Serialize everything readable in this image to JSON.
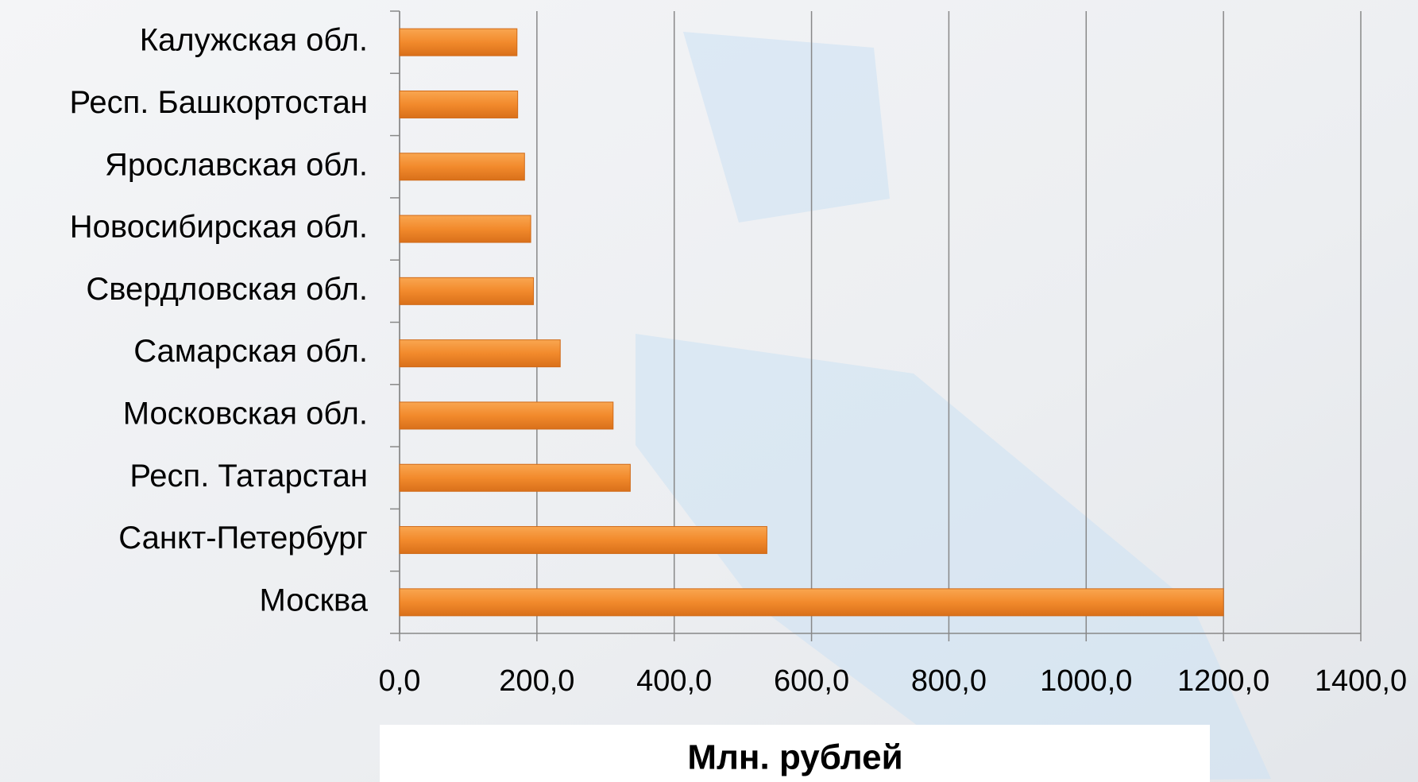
{
  "chart_data": {
    "type": "bar",
    "orientation": "horizontal",
    "x_label": "Млн. рублей",
    "categories": [
      "Калужская обл.",
      "Респ. Башкортостан",
      "Ярославская обл.",
      "Новосибирская обл.",
      "Свердловская обл.",
      "Самарская обл.",
      "Московская обл.",
      "Респ. Татарстан",
      "Санкт-Петербург",
      "Москва"
    ],
    "values": [
      171,
      172,
      182,
      191,
      195,
      234,
      311,
      336,
      535,
      1200
    ],
    "color": "#f28a2c",
    "xlim": [
      0,
      1400
    ],
    "xticks": [
      {
        "value": 0,
        "label": "0,0"
      },
      {
        "value": 200,
        "label": "200,0"
      },
      {
        "value": 400,
        "label": "400,0"
      },
      {
        "value": 600,
        "label": "600,0"
      },
      {
        "value": 800,
        "label": "800,0"
      },
      {
        "value": 1000,
        "label": "1000,0"
      },
      {
        "value": 1200,
        "label": "1200,0"
      },
      {
        "value": 1400,
        "label": "1400,0"
      }
    ],
    "grid": true
  }
}
